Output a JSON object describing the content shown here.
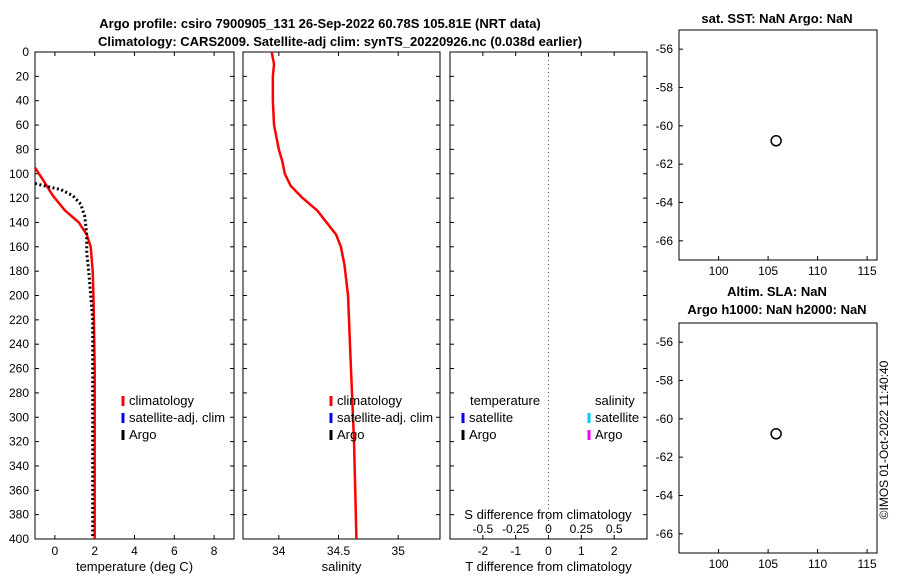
{
  "header": {
    "title_line1": "Argo profile: csiro 7900905_131 26-Sep-2022 60.78S 105.81E (NRT data)",
    "title_line2": "Climatology: CARS2009. Satellite-adj clim: synTS_20220926.nc (0.038d earlier)"
  },
  "watermark": "©IMOS 01-Oct-2022 11:40:40",
  "colors": {
    "climatology": "#ff0000",
    "satellite_adj": "#0000ff",
    "argo": "#000000",
    "satellite_s": "#00ccff",
    "argo_s": "#ff00ff",
    "zero_line": "#555555"
  },
  "chart_data": [
    {
      "id": "temperature",
      "type": "line",
      "title": "",
      "xlabel": "temperature (deg C)",
      "ylabel": "",
      "xlim": [
        -1,
        9
      ],
      "ylim": [
        400,
        0
      ],
      "xticks": [
        0,
        2,
        4,
        6,
        8
      ],
      "yticks": [
        0,
        20,
        40,
        60,
        80,
        100,
        120,
        140,
        160,
        180,
        200,
        220,
        240,
        260,
        280,
        300,
        320,
        340,
        360,
        380,
        400
      ],
      "legend": [
        "climatology",
        "satellite-adj. clim",
        "Argo"
      ],
      "series": [
        {
          "name": "climatology",
          "style": "solid",
          "x": [
            -1.0,
            -0.6,
            -0.1,
            0.5,
            1.2,
            1.6,
            1.8,
            1.9,
            1.95,
            2.0,
            2.0,
            2.0
          ],
          "y": [
            95,
            105,
            118,
            130,
            140,
            150,
            160,
            180,
            210,
            260,
            330,
            400
          ]
        },
        {
          "name": "Argo",
          "style": "dotted",
          "x": [
            -1.0,
            -0.5,
            0.3,
            0.9,
            1.3,
            1.5,
            1.6,
            1.6,
            1.7,
            1.8,
            1.9,
            1.9,
            1.9
          ],
          "y": [
            108,
            110,
            113,
            118,
            125,
            135,
            150,
            165,
            180,
            200,
            220,
            300,
            400
          ]
        }
      ]
    },
    {
      "id": "salinity",
      "type": "line",
      "title": "",
      "xlabel": "salinity",
      "ylabel": "",
      "xlim": [
        33.7,
        35.35
      ],
      "ylim": [
        400,
        0
      ],
      "xticks": [
        34,
        34.5,
        35
      ],
      "xticklabels": [
        "34",
        "34.5",
        "35"
      ],
      "legend": [
        "climatology",
        "satellite-adj. clim",
        "Argo"
      ],
      "series": [
        {
          "name": "climatology",
          "style": "solid",
          "x": [
            33.94,
            33.96,
            33.95,
            33.95,
            33.96,
            34.0,
            34.03,
            34.05,
            34.1,
            34.2,
            34.32,
            34.4,
            34.48,
            34.52,
            34.55,
            34.58,
            34.6,
            34.63,
            34.65
          ],
          "y": [
            0,
            10,
            20,
            40,
            60,
            80,
            90,
            100,
            110,
            120,
            130,
            140,
            150,
            160,
            175,
            200,
            250,
            320,
            400
          ]
        }
      ]
    },
    {
      "id": "difference",
      "type": "line",
      "title": "",
      "xlabel": "T difference from climatology",
      "x2label": "S difference from climatology",
      "xlim": [
        -3,
        3
      ],
      "ylim": [
        400,
        0
      ],
      "xticks": [
        -2,
        -1,
        0,
        1,
        2
      ],
      "xticklabels": [
        "-2",
        "-1",
        "0",
        "1",
        "2"
      ],
      "x2ticks": [
        -0.5,
        -0.25,
        0,
        0.25,
        0.5
      ],
      "x2ticklabels": [
        "-0.5",
        "-0.25",
        "0",
        "0.25",
        "0.5"
      ],
      "x2lim": [
        -0.75,
        0.75
      ],
      "legend_t": {
        "header": "temperature",
        "items": [
          "satellite",
          "Argo"
        ]
      },
      "legend_s": {
        "header": "salinity",
        "items": [
          "satellite",
          "Argo"
        ]
      },
      "series": []
    },
    {
      "id": "sst_map",
      "type": "scatter",
      "title": "sat. SST: NaN Argo: NaN",
      "xlim": [
        96,
        116
      ],
      "ylim": [
        -67,
        -55
      ],
      "xticks": [
        100,
        105,
        110,
        115
      ],
      "yticks": [
        -56,
        -58,
        -60,
        -62,
        -64,
        -66
      ],
      "points": [
        {
          "x": 105.81,
          "y": -60.78
        }
      ]
    },
    {
      "id": "sla_map",
      "type": "scatter",
      "title": "Altim. SLA: NaN",
      "title2": "Argo h1000: NaN h2000: NaN",
      "xlim": [
        96,
        116
      ],
      "ylim": [
        -67,
        -55
      ],
      "xticks": [
        100,
        105,
        110,
        115
      ],
      "yticks": [
        -56,
        -58,
        -60,
        -62,
        -64,
        -66
      ],
      "points": [
        {
          "x": 105.81,
          "y": -60.78
        }
      ]
    }
  ]
}
